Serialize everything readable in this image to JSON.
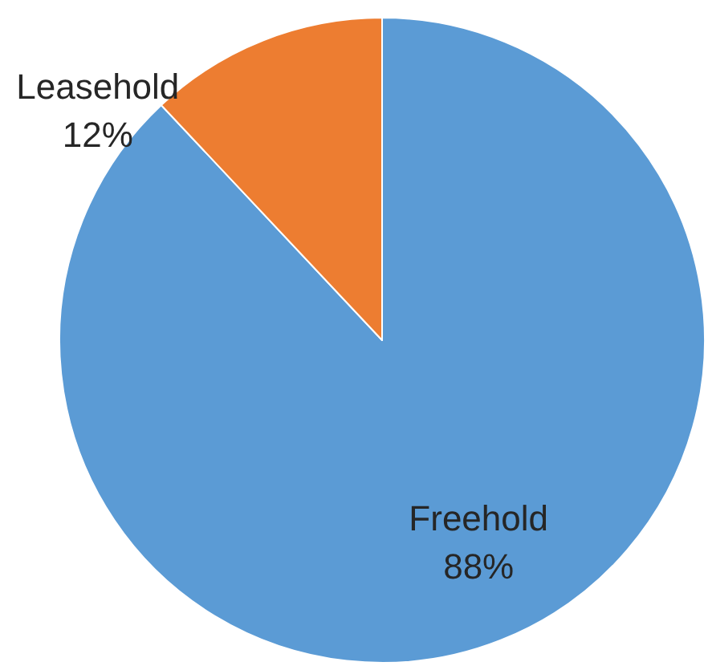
{
  "chart_data": {
    "type": "pie",
    "categories": [
      "Freehold",
      "Leasehold"
    ],
    "values": [
      88,
      12
    ],
    "colors": [
      "#5b9bd5",
      "#ed7d31"
    ],
    "value_labels": [
      "88%",
      "12%"
    ],
    "legend": false
  }
}
